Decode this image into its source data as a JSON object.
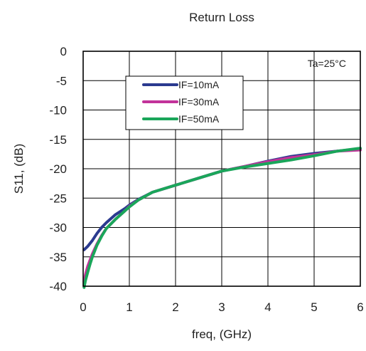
{
  "chart_data": {
    "type": "line",
    "title": "Return Loss",
    "xlabel": "freq, (GHz)",
    "ylabel": "S11, (dB)",
    "xlim": [
      0,
      6
    ],
    "ylim": [
      -40,
      0
    ],
    "x_ticks": [
      0,
      1,
      2,
      3,
      4,
      5,
      6
    ],
    "y_ticks": [
      0,
      -5,
      -10,
      -15,
      -20,
      -25,
      -30,
      -35,
      -40
    ],
    "x_tick_labels": [
      "0",
      "1",
      "2",
      "3",
      "4",
      "5",
      "6"
    ],
    "y_tick_labels": [
      "0",
      "-5",
      "-10",
      "-15",
      "-20",
      "-25",
      "-30",
      "-35",
      "-40"
    ],
    "grid": true,
    "legend_position": "upper-center",
    "annotation": "Ta=25°C",
    "series": [
      {
        "name": "IF=10mA",
        "color": "#2b3a8f",
        "x": [
          0.02,
          0.1,
          0.2,
          0.3,
          0.4,
          0.5,
          0.7,
          0.9,
          1.0,
          1.2,
          1.5,
          2.0,
          2.5,
          3.0,
          3.5,
          4.0,
          4.5,
          5.0,
          5.5,
          6.0
        ],
        "y": [
          -33.8,
          -33.2,
          -32.2,
          -31.0,
          -30.0,
          -29.2,
          -27.8,
          -26.8,
          -26.2,
          -25.2,
          -24.0,
          -22.8,
          -21.6,
          -20.4,
          -19.6,
          -18.7,
          -17.9,
          -17.4,
          -17.0,
          -16.6
        ]
      },
      {
        "name": "IF=30mA",
        "color": "#c2339a",
        "x": [
          0.02,
          0.05,
          0.1,
          0.15,
          0.2,
          0.3,
          0.4,
          0.5,
          0.7,
          0.9,
          1.0,
          1.2,
          1.5,
          2.0,
          2.5,
          3.0,
          3.5,
          4.0,
          4.5,
          5.0,
          5.5,
          6.0
        ],
        "y": [
          -39.2,
          -38.0,
          -36.6,
          -35.5,
          -34.5,
          -32.8,
          -31.4,
          -30.2,
          -28.6,
          -27.2,
          -26.4,
          -25.3,
          -24.0,
          -22.8,
          -21.6,
          -20.4,
          -19.6,
          -18.8,
          -18.1,
          -17.6,
          -17.0,
          -16.8
        ]
      },
      {
        "name": "IF=50mA",
        "color": "#1aa65a",
        "x": [
          0.02,
          0.05,
          0.1,
          0.15,
          0.2,
          0.3,
          0.4,
          0.5,
          0.7,
          0.9,
          1.0,
          1.2,
          1.5,
          2.0,
          2.5,
          3.0,
          3.5,
          4.0,
          4.5,
          5.0,
          5.5,
          6.0
        ],
        "y": [
          -40.2,
          -39.0,
          -37.6,
          -36.2,
          -35.0,
          -33.0,
          -31.5,
          -30.2,
          -28.6,
          -27.2,
          -26.5,
          -25.3,
          -24.0,
          -22.8,
          -21.6,
          -20.4,
          -19.7,
          -19.1,
          -18.5,
          -17.8,
          -17.0,
          -16.5
        ]
      }
    ]
  }
}
